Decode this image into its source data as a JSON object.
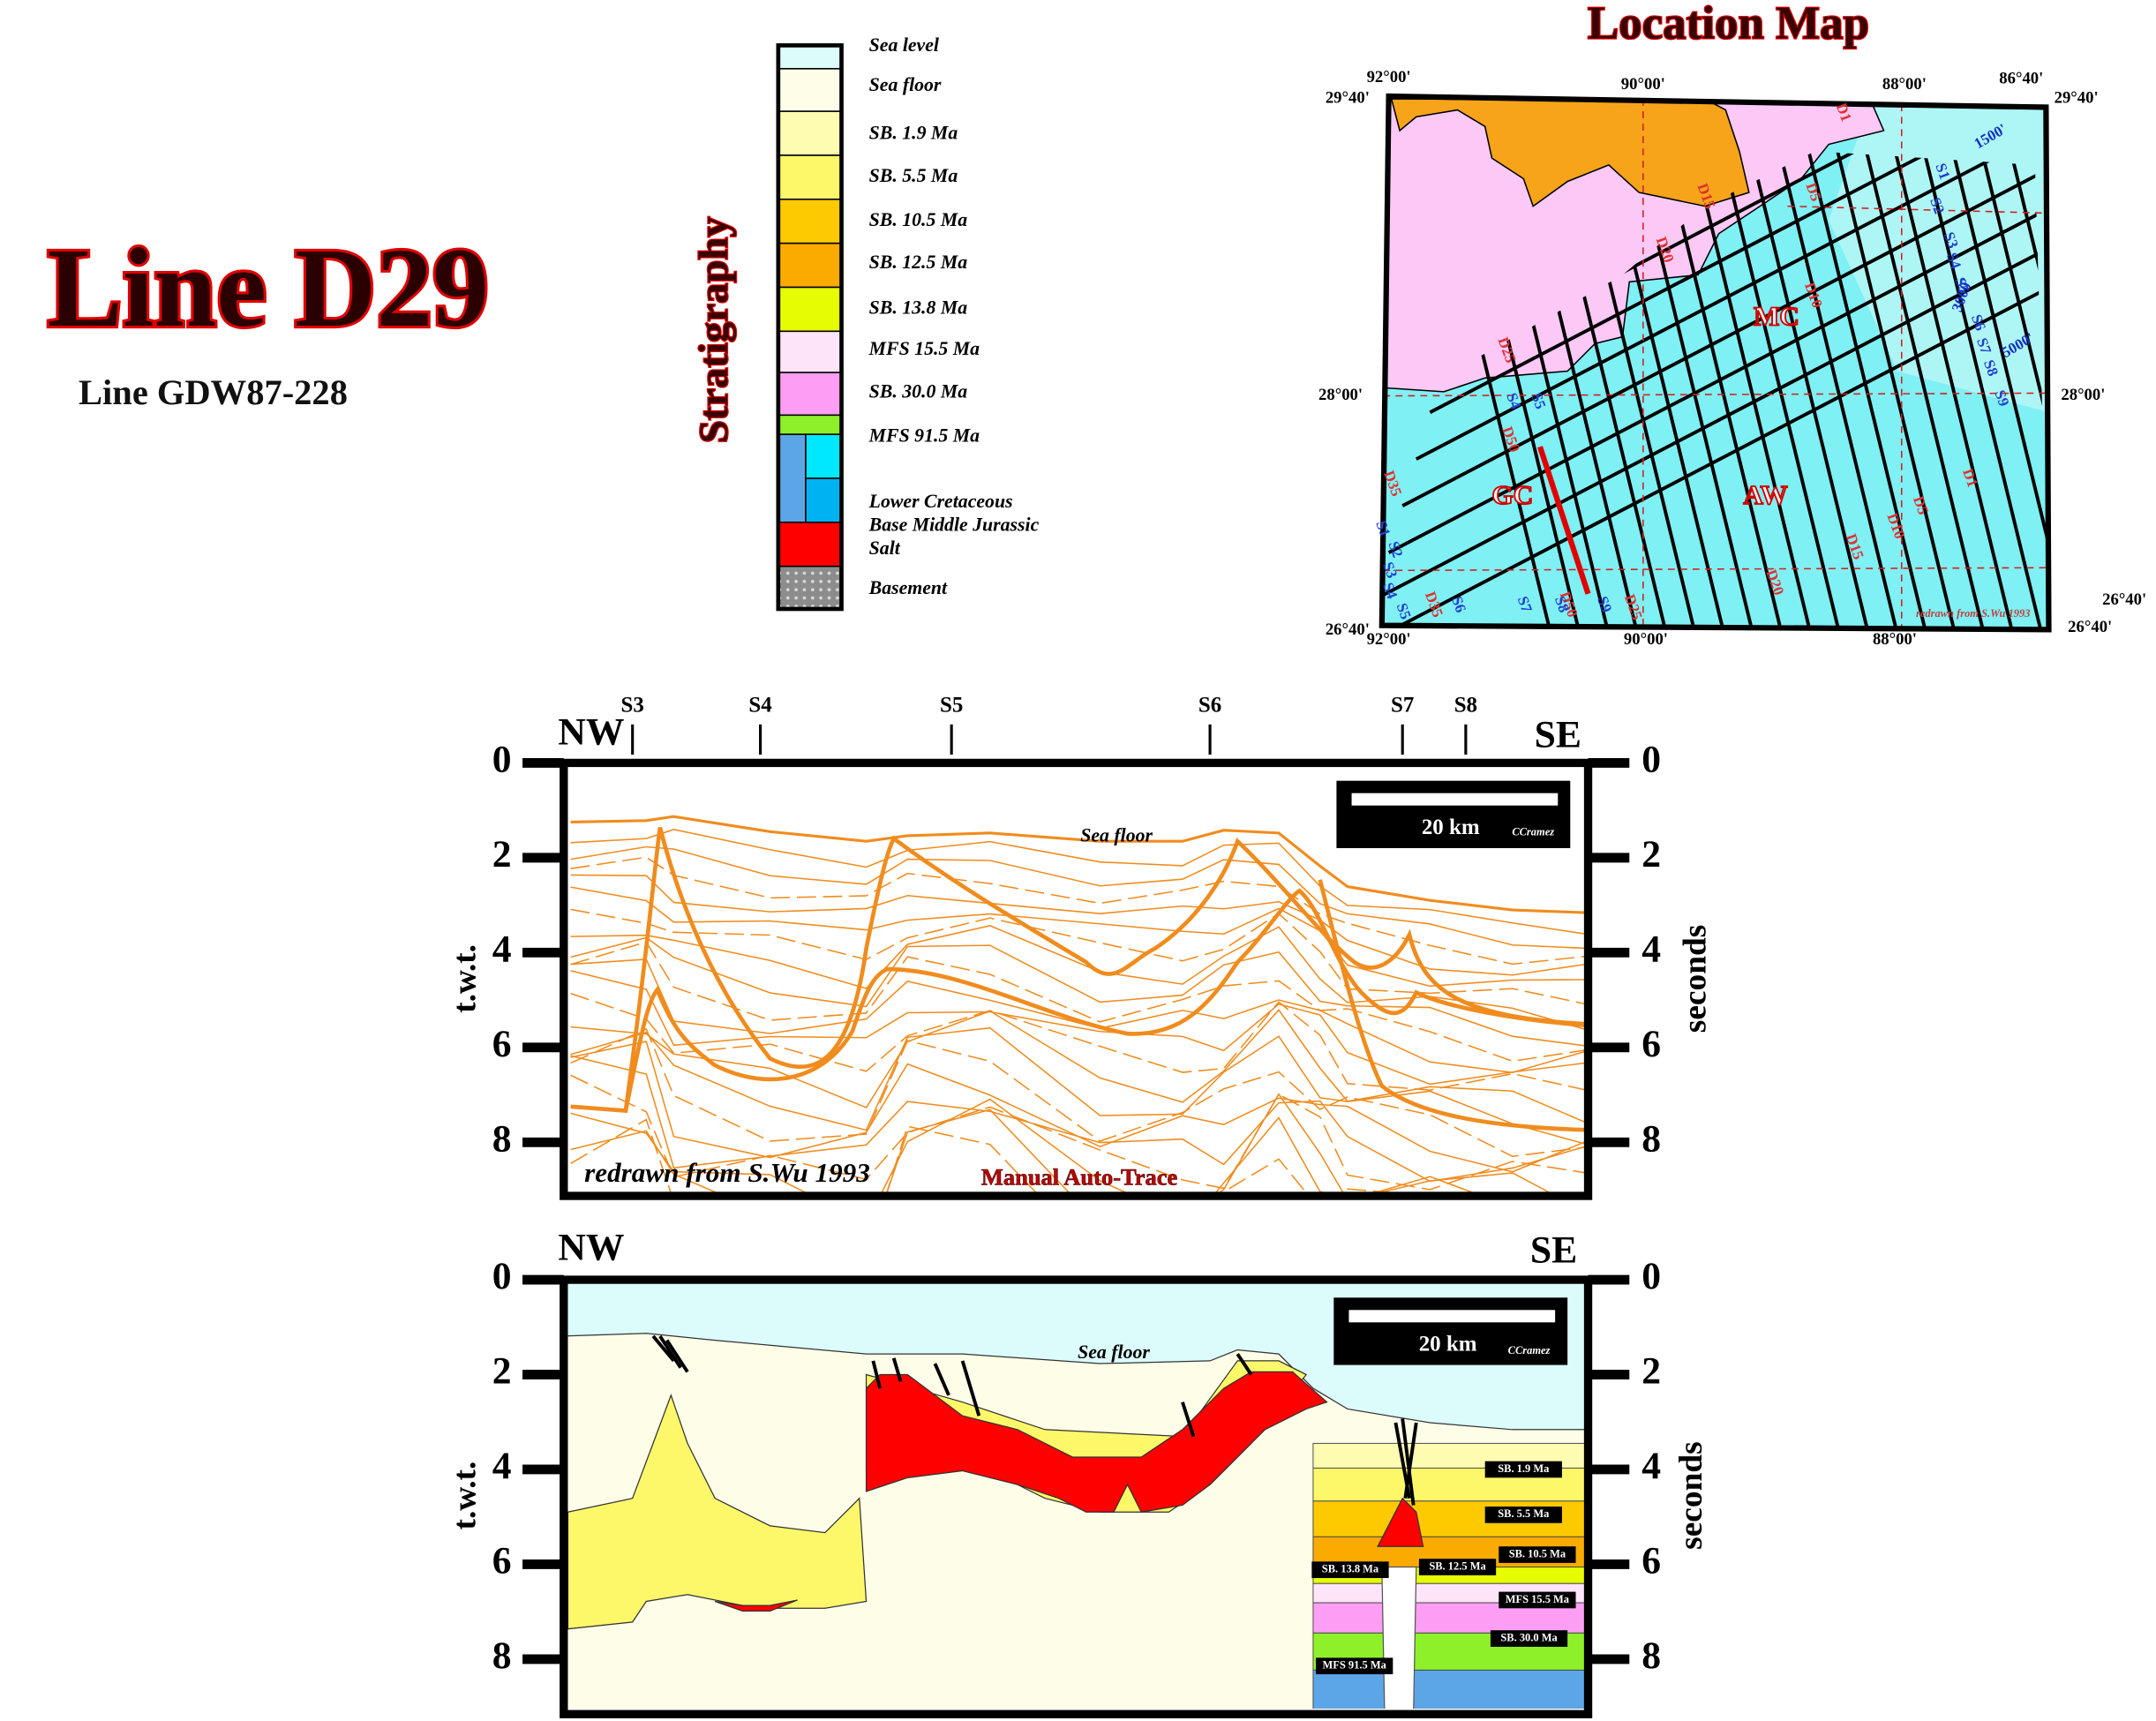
{
  "header": {
    "title": "Line D29",
    "subtitle": "Line GDW87-228"
  },
  "stratigraphy": {
    "heading": "Stratigraphy",
    "units": [
      {
        "label": "Sea level",
        "color": "#dcfcfc"
      },
      {
        "label": "Sea floor",
        "color": "#fefde8"
      },
      {
        "label": "SB. 1.9 Ma",
        "color": "#fefcb0"
      },
      {
        "label": "SB. 5.5 Ma",
        "color": "#fdf86a"
      },
      {
        "label": "SB. 10.5 Ma",
        "color": "#fdc900"
      },
      {
        "label": "SB. 12.5 Ma",
        "color": "#fbaa00"
      },
      {
        "label": "SB. 13.8 Ma",
        "color": "#e6fc00"
      },
      {
        "label": "MFS 15.5 Ma",
        "color": "#fde4f8"
      },
      {
        "label": "SB. 30.0 Ma",
        "color": "#fb9ef4"
      },
      {
        "label": "MFS 91.5 Ma",
        "color": "#8ef029"
      },
      {
        "label": "Lower Cretaceous",
        "color": "#5ca6e8"
      },
      {
        "label": "Base Middle Jurassic",
        "color": "#00b2f2"
      },
      {
        "label": "Salt",
        "color": "#fe0000"
      },
      {
        "label": "Basement",
        "color": "#9a9a9a"
      }
    ]
  },
  "location_map": {
    "title": "Location Map",
    "longitudes": [
      "92°00'",
      "90°00'",
      "88°00'",
      "86°40'"
    ],
    "latitudes": [
      "29°40'",
      "28°00'",
      "26°40'"
    ],
    "areas": [
      "MC",
      "GC",
      "AW"
    ],
    "contours": [
      "1500'",
      "3000'",
      "5000'"
    ],
    "line_labels": [
      "D1",
      "D5",
      "D10",
      "D15",
      "D20",
      "D25",
      "D30",
      "D35",
      "D50",
      "S1",
      "S2",
      "S3",
      "S4",
      "S5",
      "S6",
      "S7",
      "S8",
      "S9"
    ],
    "credit": "redrawn from S.Wu 1993"
  },
  "seismic_section": {
    "left_direction": "NW",
    "right_direction": "SE",
    "wells": [
      "S3",
      "S4",
      "S5",
      "S6",
      "S7",
      "S8"
    ],
    "axis_label": "t.w.t.",
    "axis_label_right": "seconds",
    "ticks": [
      0,
      2,
      4,
      6,
      8
    ],
    "sea_floor": "Sea floor",
    "scale_bar": "20 km",
    "author": "CCramez",
    "credit": "redrawn from S.Wu 1993",
    "method": "Manual Auto-Trace"
  },
  "interpretation": {
    "left_direction": "NW",
    "right_direction": "SE",
    "axis_label": "t.w.t.",
    "axis_label_right": "seconds",
    "ticks": [
      0,
      2,
      4,
      6,
      8
    ],
    "sea_floor": "Sea floor",
    "scale_bar": "20 km",
    "author": "CCramez",
    "horizon_labels": [
      "SB. 1.9 Ma",
      "SB. 5.5 Ma",
      "SB. 10.5 Ma",
      "SB. 12.5 Ma",
      "SB. 13.8 Ma",
      "MFS 15.5 Ma",
      "SB. 30.0 Ma",
      "MFS 91.5 Ma"
    ]
  }
}
